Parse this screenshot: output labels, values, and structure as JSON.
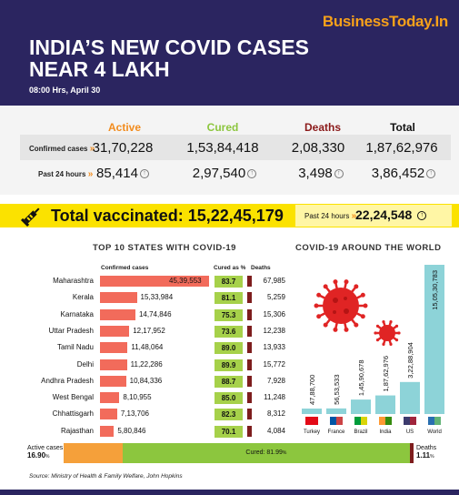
{
  "brand": "BusinessToday.In",
  "title_line1": "INDIA’S NEW COVID CASES",
  "title_line2": "NEAR 4 LAKH",
  "timestamp": "08:00 Hrs, April 30",
  "stats": {
    "headers": {
      "active": "Active",
      "cured": "Cured",
      "deaths": "Deaths",
      "total": "Total"
    },
    "confirmed_label": "Confirmed cases",
    "last24_label": "Past 24 hours",
    "confirmed": {
      "active": "31,70,228",
      "cured": "1,53,84,418",
      "deaths": "2,08,330",
      "total": "1,87,62,976"
    },
    "last24": {
      "active": "85,414",
      "cured": "2,97,540",
      "deaths": "3,498",
      "total": "3,86,452"
    }
  },
  "vaccination": {
    "label": "Total vaccinated:",
    "total": "15,22,45,179",
    "past24_label": "Past 24 hours",
    "past24_value": "22,24,548"
  },
  "chart_data": [
    {
      "type": "bar",
      "title": "TOP 10 STATES WITH COVID-19",
      "column_headers": {
        "cases": "Confirmed cases",
        "cured": "Cured as %",
        "deaths": "Deaths"
      },
      "categories": [
        "Maharashtra",
        "Kerala",
        "Karnataka",
        "Uttar Pradesh",
        "Tamil Nadu",
        "Delhi",
        "Andhra Pradesh",
        "West Bengal",
        "Chhattisgarh",
        "Rajasthan"
      ],
      "values": [
        4539553,
        1533984,
        1474846,
        1217952,
        1148064,
        1122286,
        1084336,
        810955,
        713706,
        580846
      ],
      "value_labels": [
        "45,39,553",
        "15,33,984",
        "14,74,846",
        "12,17,952",
        "11,48,064",
        "11,22,286",
        "10,84,336",
        "8,10,955",
        "7,13,706",
        "5,80,846"
      ],
      "cured_pct": [
        "83.7",
        "81.1",
        "75.3",
        "73.6",
        "89.0",
        "89.9",
        "88.7",
        "85.0",
        "82.3",
        "70.1"
      ],
      "deaths": [
        "67,985",
        "5,259",
        "15,306",
        "12,238",
        "13,933",
        "15,772",
        "7,928",
        "11,248",
        "8,312",
        "4,084"
      ],
      "colors": {
        "cases": "#f26b5b",
        "cured": "#a6d14a",
        "deaths": "#7d1d1d"
      }
    },
    {
      "type": "bar",
      "title": "COVID-19 AROUND THE WORLD",
      "categories": [
        "Turkey",
        "France",
        "Brazil",
        "India",
        "US",
        "World"
      ],
      "values": [
        4788700,
        5653533,
        14590678,
        18762976,
        32288904,
        150530783
      ],
      "value_labels": [
        "47,88,700",
        "56,53,533",
        "1,45,90,678",
        "1,87,62,976",
        "3,22,88,904",
        "15,05,30,783"
      ],
      "color": "#8dd3d8"
    },
    {
      "type": "bar",
      "stacked": true,
      "segments": [
        {
          "label": "Active cases",
          "value": 16.9,
          "value_label": "16.90",
          "unit": "%",
          "color": "#f5a03a"
        },
        {
          "label": "Cured:",
          "value": 81.99,
          "value_label": "81.99",
          "unit": "%",
          "color": "#8cc63e"
        },
        {
          "label": "Deaths",
          "value": 1.11,
          "value_label": "1.11",
          "unit": "%",
          "color": "#7d1d1d"
        }
      ]
    }
  ],
  "source": "Source: Ministry of Health & Family Welfare, John Hopkins"
}
